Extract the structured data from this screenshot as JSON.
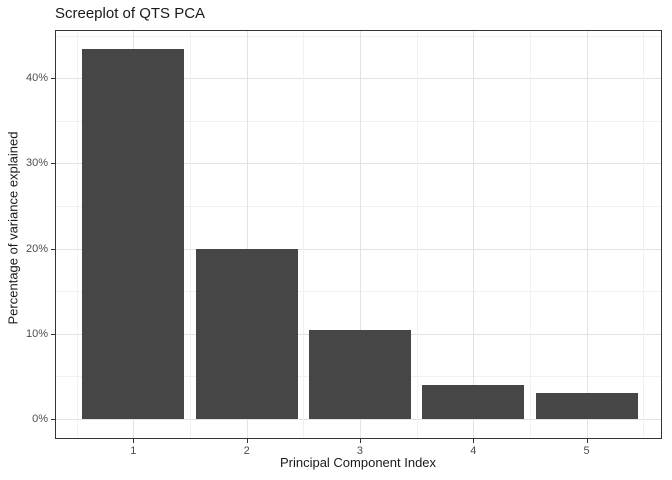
{
  "chart_data": {
    "type": "bar",
    "title": "Screeplot of QTS PCA",
    "xlabel": "Principal Component Index",
    "ylabel": "Percentage of variance explained",
    "categories": [
      "1",
      "2",
      "3",
      "4",
      "5"
    ],
    "values": [
      43.4,
      20.0,
      10.4,
      4.0,
      3.0
    ],
    "value_unit": "percent",
    "x_tick_labels": [
      "1",
      "2",
      "3",
      "4",
      "5"
    ],
    "y_tick_labels": [
      "0%",
      "10%",
      "20%",
      "30%",
      "40%"
    ],
    "y_major_ticks": [
      0,
      10,
      20,
      30,
      40
    ],
    "y_minor_ticks": [
      5,
      15,
      25,
      35,
      45
    ],
    "x_minor_ticks": [
      0.5,
      1.5,
      2.5,
      3.5,
      4.5,
      5.5
    ],
    "ylim": [
      0,
      45.7
    ],
    "xlim": [
      0.3,
      5.7
    ],
    "bar_width_units": 0.9,
    "grid": "major+minor",
    "legend": "none",
    "colors": {
      "bar_fill": "#464646",
      "panel_border": "#343434",
      "grid_major": "#e2e2e2",
      "grid_minor": "#f1f1f1",
      "tick_mark": "#333333",
      "axis_text": "#4d4d4d",
      "title_text": "#1a1a1a",
      "background": "#ffffff"
    }
  }
}
